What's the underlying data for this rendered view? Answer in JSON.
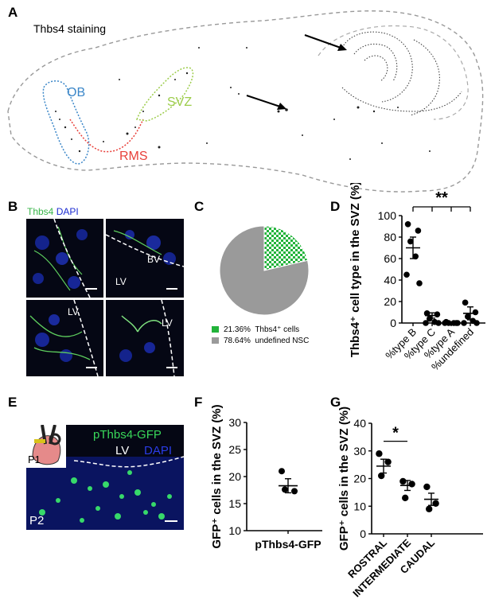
{
  "panelA": {
    "letter": "A",
    "title": "Thbs4 staining",
    "labels": {
      "ob": "OB",
      "rms": "RMS",
      "svz": "SVZ"
    }
  },
  "panelB": {
    "letter": "B",
    "stain1": "Thbs4",
    "stain2": "DAPI",
    "labels": {
      "bv": "BV",
      "lv1": "LV",
      "lv2": "LV",
      "lv3": "LV"
    }
  },
  "panelC": {
    "letter": "C",
    "legend": [
      {
        "pct": "21.36%",
        "label": "Thbs4⁺ cells"
      },
      {
        "pct": "78.64%",
        "label": "undefined NSC"
      }
    ]
  },
  "panelD": {
    "letter": "D",
    "significance": "**"
  },
  "panelE": {
    "letter": "E",
    "construct": "pThbs4-GFP",
    "lv": "LV",
    "dapi": "DAPI",
    "p1": "P1",
    "p2": "P2"
  },
  "panelF": {
    "letter": "F"
  },
  "panelG": {
    "letter": "G",
    "significance": "*"
  },
  "chart_data": [
    {
      "id": "C",
      "type": "pie",
      "slices": [
        {
          "label": "Thbs4⁺ cells",
          "value": 21.36,
          "color": "#22b33a",
          "pattern": "checker"
        },
        {
          "label": "undefined NSC",
          "value": 78.64,
          "color": "#9a9a9a"
        }
      ]
    },
    {
      "id": "D",
      "type": "scatter",
      "ylabel": "Thbs4⁺ cell type in the SVZ (%)",
      "ylim": [
        0,
        100
      ],
      "yticks": [
        0,
        20,
        40,
        60,
        80,
        100
      ],
      "categories": [
        "%type B",
        "%type C",
        "%type A",
        "%undefined"
      ],
      "points": [
        [
          92,
          86,
          76,
          62,
          45,
          37
        ],
        [
          9,
          8,
          4,
          1,
          0,
          0
        ],
        [
          1,
          0,
          0,
          0,
          0,
          0
        ],
        [
          19,
          10,
          6,
          2,
          0,
          0
        ]
      ],
      "means": [
        70,
        7,
        0.5,
        9
      ],
      "sems": [
        10,
        2.5,
        0.5,
        6
      ],
      "significance": "**"
    },
    {
      "id": "F",
      "type": "scatter",
      "ylabel": "GFP⁺ cells in the SVZ (%)",
      "ylim": [
        10,
        30
      ],
      "yticks": [
        10,
        15,
        20,
        25,
        30
      ],
      "categories": [
        "pThbs4-GFP"
      ],
      "points": [
        [
          21,
          17.3,
          17.6
        ]
      ],
      "means": [
        18.3
      ],
      "sems": [
        1.3
      ]
    },
    {
      "id": "G",
      "type": "scatter",
      "ylabel": "GFP⁺ cells in the SVZ (%)",
      "ylim": [
        0,
        40
      ],
      "yticks": [
        0,
        10,
        20,
        30,
        40
      ],
      "categories": [
        "ROSTRAL",
        "INTERMEDIATE",
        "CAUDAL"
      ],
      "points": [
        [
          29,
          26,
          21
        ],
        [
          19,
          18,
          13
        ],
        [
          17,
          11,
          9
        ]
      ],
      "means": [
        24.5,
        17.5,
        12.5
      ],
      "sems": [
        2.5,
        1.8,
        2.2
      ],
      "significance": "*"
    }
  ]
}
